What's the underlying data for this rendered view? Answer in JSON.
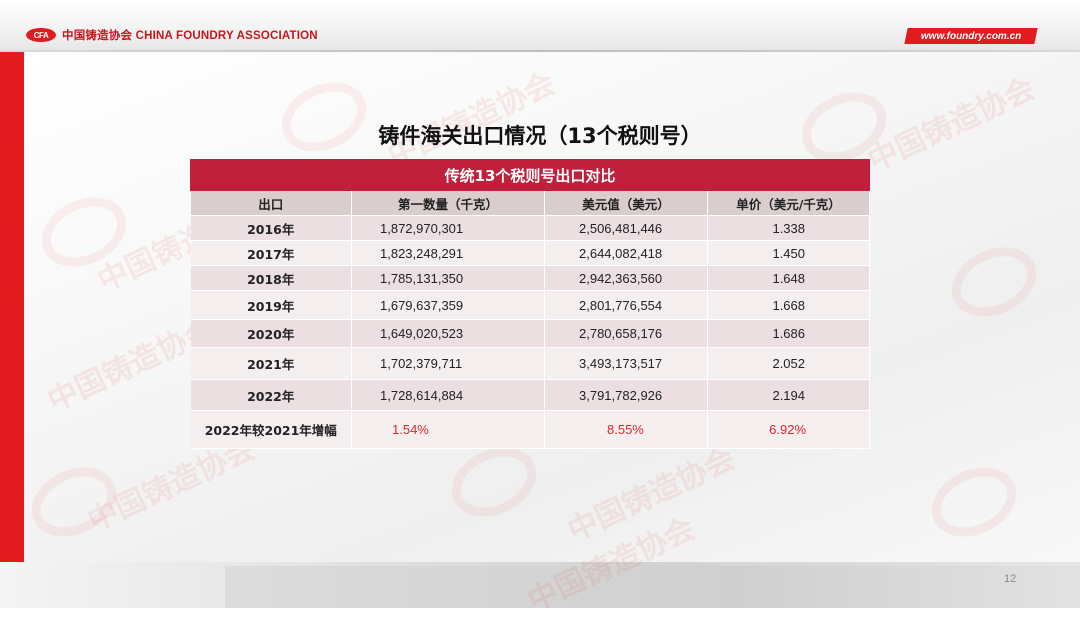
{
  "header": {
    "logo_text": "CFA",
    "association_name": "中国铸造协会 CHINA FOUNDRY ASSOCIATION",
    "website": "www.foundry.com.cn"
  },
  "watermark": {
    "text_cn": "中国铸造协会",
    "text_en": "CHINA FOUNDRY ASSOCIATION"
  },
  "slide": {
    "title": "铸件海关出口情况（13个税则号）",
    "page_number": "12"
  },
  "table": {
    "caption": "传统13个税则号出口对比",
    "columns": [
      "出口",
      "第一数量（千克）",
      "美元值（美元）",
      "单价（美元/千克）"
    ],
    "rows": [
      {
        "year": "2016年",
        "qty": "1,872,970,301",
        "usd": "2,506,481,446",
        "price": "1.338"
      },
      {
        "year": "2017年",
        "qty": "1,823,248,291",
        "usd": "2,644,082,418",
        "price": "1.450"
      },
      {
        "year": "2018年",
        "qty": "1,785,131,350",
        "usd": "2,942,363,560",
        "price": "1.648"
      },
      {
        "year": "2019年",
        "qty": "1,679,637,359",
        "usd": "2,801,776,554",
        "price": "1.668"
      },
      {
        "year": "2020年",
        "qty": "1,649,020,523",
        "usd": "2,780,658,176",
        "price": "1.686"
      },
      {
        "year": "2021年",
        "qty": "1,702,379,711",
        "usd": "3,493,173,517",
        "price": "2.052"
      },
      {
        "year": "2022年",
        "qty": "1,728,614,884",
        "usd": "3,791,782,926",
        "price": "2.194"
      }
    ],
    "growth": {
      "label": "2022年较2021年增幅",
      "qty": "1.54%",
      "usd": "8.55%",
      "price": "6.92%"
    }
  },
  "colors": {
    "brand_red": "#e21b1f",
    "caption_red": "#c0203c",
    "growth_red": "#e0262d"
  }
}
